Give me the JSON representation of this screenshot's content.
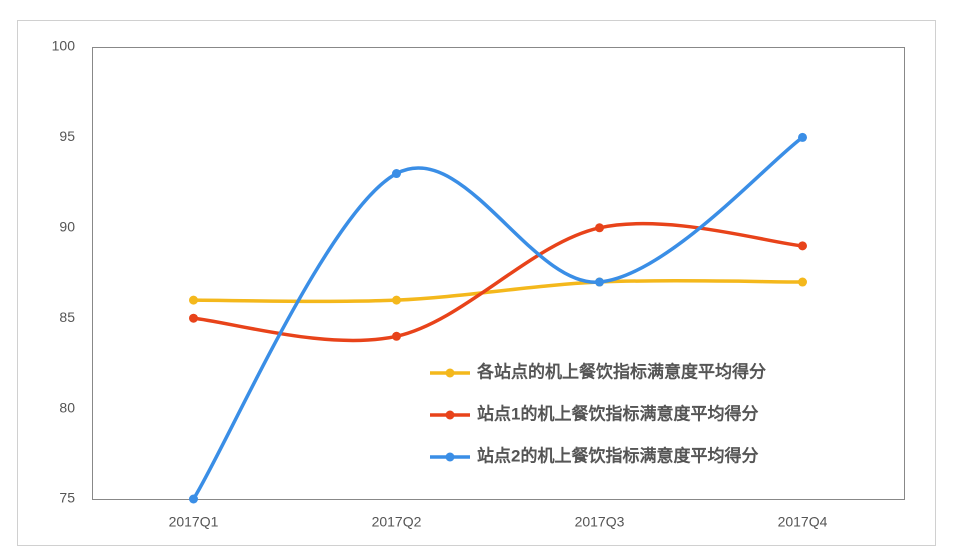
{
  "chart_data": {
    "type": "line",
    "smooth": true,
    "legend": "lower right",
    "categories": [
      "2017Q1",
      "2017Q2",
      "2017Q3",
      "2017Q4"
    ],
    "series": [
      {
        "name": "各站点的机上餐饮指标满意度平均得分",
        "color": "#f4b81c",
        "values": [
          86,
          86,
          87,
          87
        ]
      },
      {
        "name": "站点1的机上餐饮指标满意度平均得分",
        "color": "#e8431a",
        "values": [
          85,
          84,
          90,
          89
        ]
      },
      {
        "name": "站点2的机上餐饮指标满意度平均得分",
        "color": "#3a8ee6",
        "values": [
          75,
          93,
          87,
          95
        ]
      }
    ],
    "ylim": [
      75,
      100
    ],
    "yticks": [
      75,
      80,
      85,
      90,
      95,
      100
    ]
  }
}
